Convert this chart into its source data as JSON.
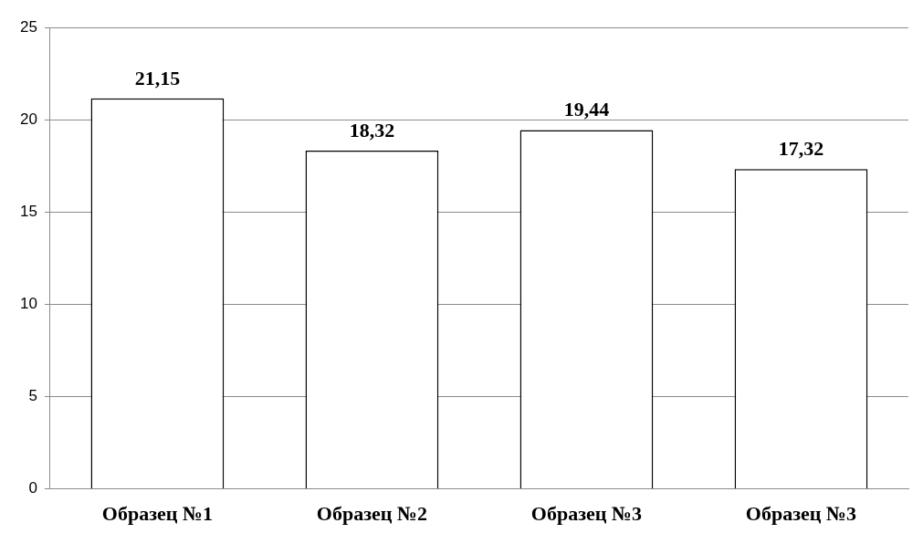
{
  "chart_data": {
    "type": "bar",
    "categories": [
      "Образец №1",
      "Образец №2",
      "Образец №3",
      "Образец №3"
    ],
    "values": [
      21.15,
      18.32,
      19.44,
      17.32
    ],
    "value_labels": [
      "21,15",
      "18,32",
      "19,44",
      "17,32"
    ],
    "color": "#ffffff",
    "ylim": [
      0,
      25
    ],
    "yticks": [
      0,
      5,
      10,
      15,
      20,
      25
    ],
    "grid": "y",
    "legend": false
  }
}
